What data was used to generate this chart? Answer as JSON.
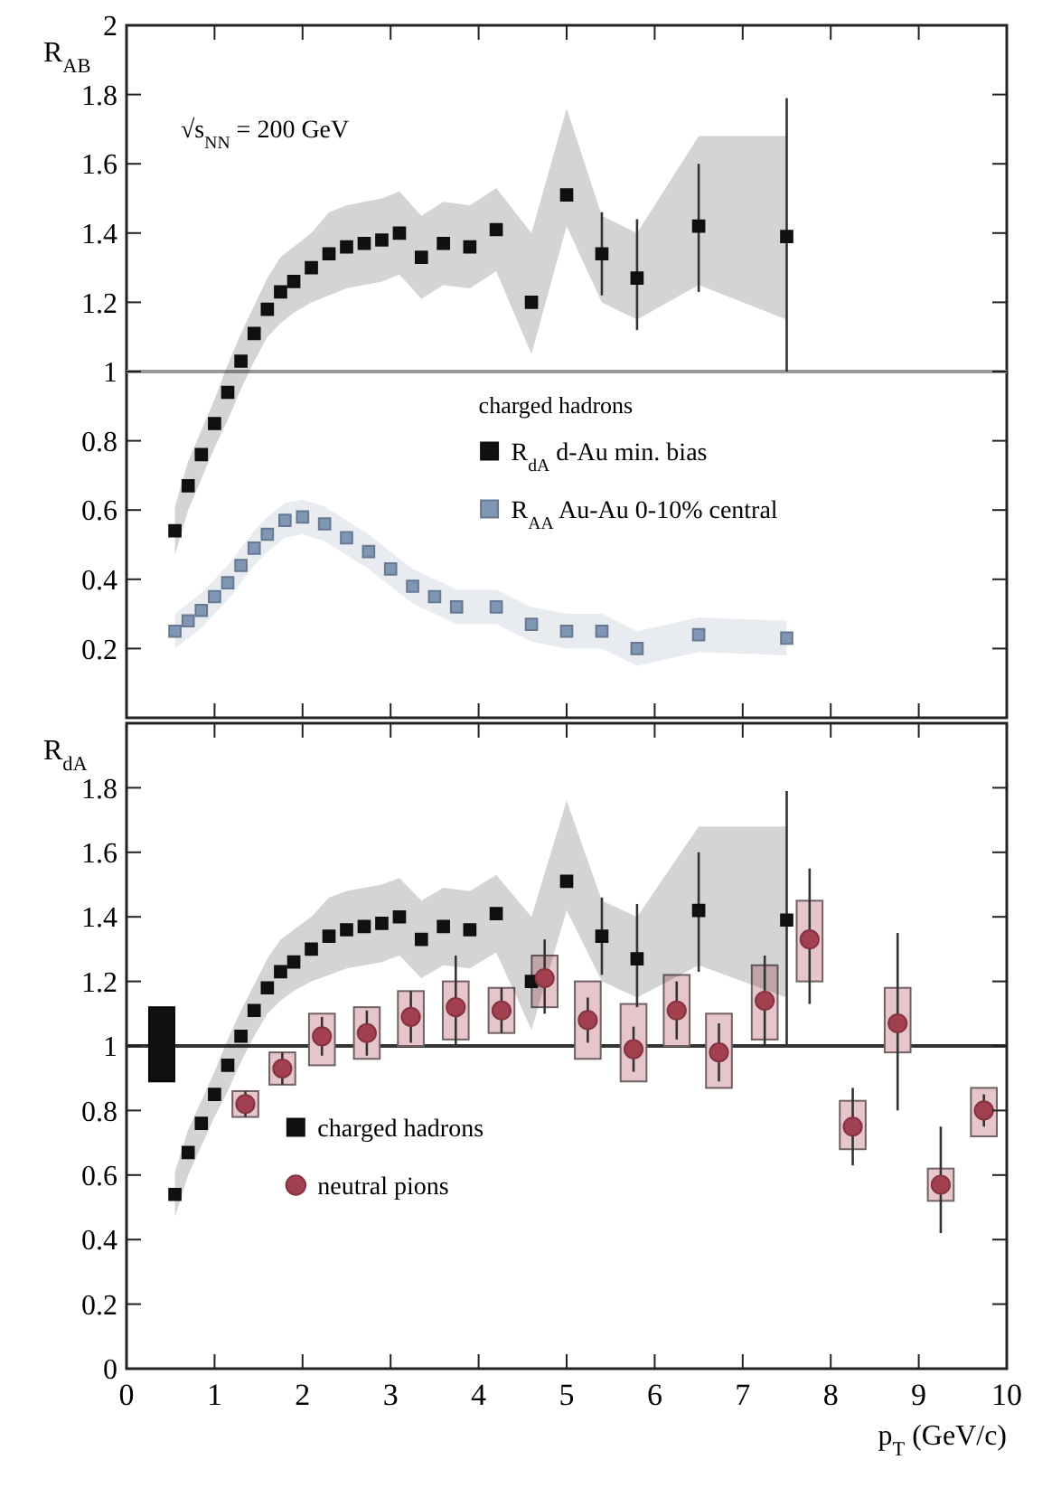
{
  "chart_data": [
    {
      "type": "scatter",
      "ylabel": "R$_{AB}$",
      "annotations": [
        "√s$_{NN}$ = 200 GeV"
      ],
      "legend_title": "charged hadrons",
      "legend": "center right",
      "tick_labels": "y",
      "marker": "square",
      "xlim": [
        0,
        10
      ],
      "xticks": [
        {
          "value": 0,
          "label": null
        },
        {
          "value": 1,
          "label": null
        },
        {
          "value": 2,
          "label": null
        },
        {
          "value": 3,
          "label": null
        },
        {
          "value": 4,
          "label": null
        },
        {
          "value": 5,
          "label": null
        },
        {
          "value": 6,
          "label": null
        },
        {
          "value": 7,
          "label": null
        },
        {
          "value": 8,
          "label": null
        },
        {
          "value": 9,
          "label": null
        },
        {
          "value": 10,
          "label": null
        }
      ],
      "ylim": [
        0,
        2
      ],
      "yticks": [
        0.2,
        0.4,
        0.6,
        0.8,
        1,
        1.2,
        1.4,
        1.6,
        1.8,
        2
      ],
      "ref_lines": [
        {
          "axis": "y",
          "value": 1,
          "color": "#999999"
        }
      ],
      "series": [
        {
          "name": "R$_{dA}$  d-Au min. bias",
          "color": "#111111",
          "x": [
            0.55,
            0.7,
            0.85,
            1.0,
            1.15,
            1.3,
            1.45,
            1.6,
            1.75,
            1.9,
            2.1,
            2.3,
            2.5,
            2.7,
            2.9,
            3.1,
            3.35,
            3.6,
            3.9,
            4.2,
            4.6,
            5.0,
            5.4,
            5.8,
            6.5,
            7.5
          ],
          "values": [
            0.54,
            0.67,
            0.76,
            0.85,
            0.94,
            1.03,
            1.11,
            1.18,
            1.23,
            1.26,
            1.3,
            1.34,
            1.36,
            1.37,
            1.38,
            1.4,
            1.33,
            1.37,
            1.36,
            1.41,
            1.2,
            1.51,
            1.34,
            1.27,
            1.42,
            1.39
          ],
          "errors": [
            null,
            null,
            null,
            null,
            null,
            null,
            null,
            null,
            null,
            null,
            null,
            null,
            null,
            null,
            null,
            null,
            null,
            null,
            null,
            null,
            null,
            null,
            [
              1.22,
              1.46
            ],
            [
              1.12,
              1.44
            ],
            [
              1.23,
              1.6
            ],
            [
              1.0,
              1.79
            ]
          ],
          "lower": [
            0.47,
            0.6,
            0.69,
            0.78,
            0.86,
            0.95,
            1.03,
            1.1,
            1.14,
            1.17,
            1.2,
            1.22,
            1.24,
            1.25,
            1.26,
            1.28,
            1.21,
            1.25,
            1.24,
            1.29,
            1.05,
            1.42,
            1.2,
            1.15,
            1.25,
            1.15
          ],
          "upper": [
            0.61,
            0.74,
            0.83,
            0.92,
            1.02,
            1.11,
            1.19,
            1.27,
            1.33,
            1.36,
            1.4,
            1.46,
            1.48,
            1.49,
            1.5,
            1.52,
            1.45,
            1.49,
            1.48,
            1.53,
            1.4,
            1.76,
            1.45,
            1.4,
            1.68,
            1.68
          ]
        },
        {
          "name": "R$_{AA}$  Au-Au 0-10% central",
          "color": "#7f96b4",
          "x": [
            0.55,
            0.7,
            0.85,
            1.0,
            1.15,
            1.3,
            1.45,
            1.6,
            1.8,
            2.0,
            2.25,
            2.5,
            2.75,
            3.0,
            3.25,
            3.5,
            3.75,
            4.2,
            4.6,
            5.0,
            5.4,
            5.8,
            6.5,
            7.5
          ],
          "values": [
            0.25,
            0.28,
            0.31,
            0.35,
            0.39,
            0.44,
            0.49,
            0.53,
            0.57,
            0.58,
            0.56,
            0.52,
            0.48,
            0.43,
            0.38,
            0.35,
            0.32,
            0.32,
            0.27,
            0.25,
            0.25,
            0.2,
            0.24,
            0.23
          ],
          "lower": [
            0.2,
            0.23,
            0.26,
            0.3,
            0.34,
            0.39,
            0.44,
            0.48,
            0.52,
            0.53,
            0.51,
            0.47,
            0.43,
            0.38,
            0.33,
            0.3,
            0.27,
            0.27,
            0.22,
            0.2,
            0.2,
            0.15,
            0.19,
            0.18
          ],
          "upper": [
            0.3,
            0.33,
            0.36,
            0.4,
            0.44,
            0.49,
            0.54,
            0.58,
            0.62,
            0.63,
            0.61,
            0.57,
            0.53,
            0.48,
            0.43,
            0.4,
            0.37,
            0.37,
            0.32,
            0.3,
            0.3,
            0.25,
            0.29,
            0.28
          ]
        }
      ]
    },
    {
      "type": "scatter",
      "ylabel": "R$_{dA}$",
      "xlabel": "p$_{T}$ (GeV/c)",
      "legend": "bottom left",
      "xlim": [
        0,
        10
      ],
      "xticks": [
        0,
        1,
        2,
        3,
        4,
        5,
        6,
        7,
        8,
        9,
        10
      ],
      "ylim": [
        0,
        2
      ],
      "yticks": [
        0,
        0.2,
        0.4,
        0.6,
        0.8,
        1,
        1.2,
        1.4,
        1.6,
        1.8
      ],
      "ref_lines": [
        {
          "axis": "y",
          "value": 1,
          "color": "#333333"
        }
      ],
      "series": [
        {
          "type": "bar",
          "color": "#111111",
          "x": [
            0.4
          ],
          "base": [
            0.89
          ],
          "values": [
            0.23
          ]
        },
        {
          "type": "bar",
          "color": "#e6c6cb",
          "x": [
            1.35,
            1.77,
            2.22,
            2.73,
            3.23,
            3.74,
            4.26,
            4.75,
            5.24,
            5.76,
            6.25,
            6.73,
            7.25,
            7.76,
            8.25,
            8.76,
            9.25,
            9.74
          ],
          "base": [
            0.78,
            0.88,
            0.94,
            0.96,
            1.0,
            1.02,
            1.04,
            1.12,
            0.96,
            0.89,
            1.0,
            0.87,
            1.02,
            1.2,
            0.68,
            0.98,
            0.52,
            0.72
          ],
          "values": [
            0.08,
            0.1,
            0.16,
            0.16,
            0.17,
            0.18,
            0.14,
            0.16,
            0.24,
            0.24,
            0.22,
            0.23,
            0.23,
            0.25,
            0.15,
            0.2,
            0.1,
            0.15
          ]
        },
        {
          "name": "charged hadrons",
          "color": "#111111",
          "marker": "square",
          "x": [
            0.55,
            0.7,
            0.85,
            1.0,
            1.15,
            1.3,
            1.45,
            1.6,
            1.75,
            1.9,
            2.1,
            2.3,
            2.5,
            2.7,
            2.9,
            3.1,
            3.35,
            3.6,
            3.9,
            4.2,
            4.6,
            5.0,
            5.4,
            5.8,
            6.5,
            7.5
          ],
          "values": [
            0.54,
            0.67,
            0.76,
            0.85,
            0.94,
            1.03,
            1.11,
            1.18,
            1.23,
            1.26,
            1.3,
            1.34,
            1.36,
            1.37,
            1.38,
            1.4,
            1.33,
            1.37,
            1.36,
            1.41,
            1.2,
            1.51,
            1.34,
            1.27,
            1.42,
            1.39
          ],
          "errors": [
            null,
            null,
            null,
            null,
            null,
            null,
            null,
            null,
            null,
            null,
            null,
            null,
            null,
            null,
            null,
            null,
            null,
            null,
            null,
            null,
            null,
            null,
            [
              1.22,
              1.46
            ],
            [
              1.12,
              1.44
            ],
            [
              1.23,
              1.6
            ],
            [
              1.0,
              1.79
            ]
          ],
          "lower": [
            0.47,
            0.6,
            0.69,
            0.78,
            0.86,
            0.95,
            1.03,
            1.1,
            1.14,
            1.17,
            1.2,
            1.22,
            1.24,
            1.25,
            1.26,
            1.28,
            1.21,
            1.25,
            1.24,
            1.29,
            1.05,
            1.42,
            1.2,
            1.15,
            1.25,
            1.15
          ],
          "upper": [
            0.61,
            0.74,
            0.83,
            0.92,
            1.02,
            1.11,
            1.19,
            1.27,
            1.33,
            1.36,
            1.4,
            1.46,
            1.48,
            1.49,
            1.5,
            1.52,
            1.45,
            1.49,
            1.48,
            1.53,
            1.4,
            1.76,
            1.45,
            1.4,
            1.68,
            1.68
          ]
        },
        {
          "name": "neutral pions",
          "color": "#a3404f",
          "marker": "circle",
          "x": [
            1.35,
            1.77,
            2.22,
            2.73,
            3.23,
            3.74,
            4.26,
            4.75,
            5.24,
            5.76,
            6.25,
            6.73,
            7.25,
            7.76,
            8.25,
            8.76,
            9.25,
            9.74
          ],
          "values": [
            0.82,
            0.93,
            1.03,
            1.04,
            1.09,
            1.12,
            1.11,
            1.21,
            1.08,
            0.99,
            1.11,
            0.98,
            1.14,
            1.33,
            0.75,
            1.07,
            0.57,
            0.8
          ],
          "errors": [
            0.04,
            0.05,
            0.06,
            0.07,
            0.08,
            [
              1.0,
              1.28
            ],
            0.07,
            [
              1.1,
              1.33
            ],
            0.07,
            0.07,
            0.09,
            0.09,
            [
              1.0,
              1.28
            ],
            [
              1.13,
              1.55
            ],
            [
              0.63,
              0.87
            ],
            [
              0.8,
              1.35
            ],
            [
              0.42,
              0.75
            ],
            0.05
          ]
        }
      ]
    }
  ]
}
